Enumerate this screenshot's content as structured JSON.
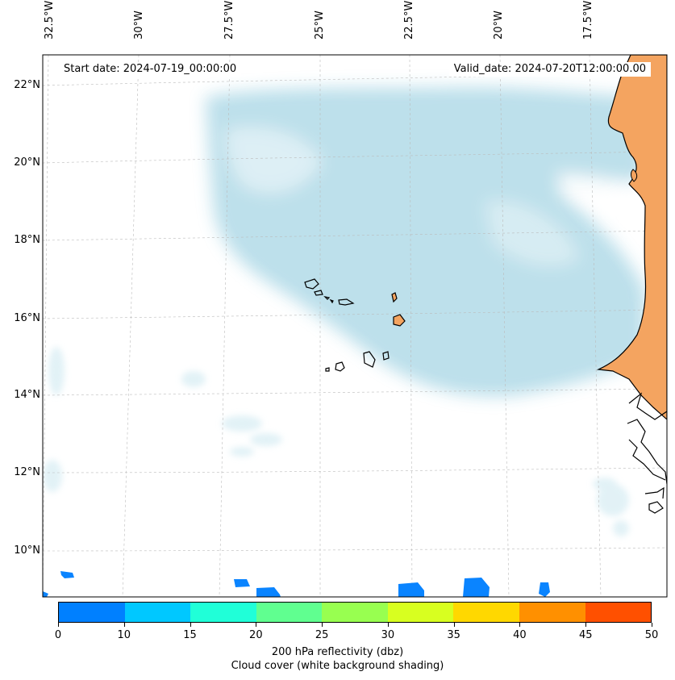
{
  "header": {
    "start_date": "Start date: 2024-07-19_00:00:00",
    "valid_date": "Valid_date: 2024-07-20T12:00:00.00"
  },
  "axes": {
    "longitude_labels": [
      "32.5°W",
      "30°W",
      "27.5°W",
      "25°W",
      "22.5°W",
      "20°W",
      "17.5°W"
    ],
    "latitude_labels": [
      "22°N",
      "20°N",
      "18°N",
      "16°N",
      "14°N",
      "12°N",
      "10°N"
    ]
  },
  "colorbar": {
    "ticks": [
      "0",
      "10",
      "15",
      "20",
      "25",
      "30",
      "35",
      "40",
      "45",
      "50"
    ],
    "colors": [
      "#0080ff",
      "#00c8ff",
      "#20ffd8",
      "#60ff90",
      "#98ff50",
      "#d8ff20",
      "#ffd800",
      "#ff9000",
      "#ff5000"
    ],
    "label_line1": "200 hPa reflectivity (dbz)",
    "label_line2": "Cloud cover (white background shading)"
  },
  "colors": {
    "cloud": "#add8e6",
    "land": "#f4a460",
    "reflectivity": "#0a84ff",
    "coast": "#000000"
  }
}
